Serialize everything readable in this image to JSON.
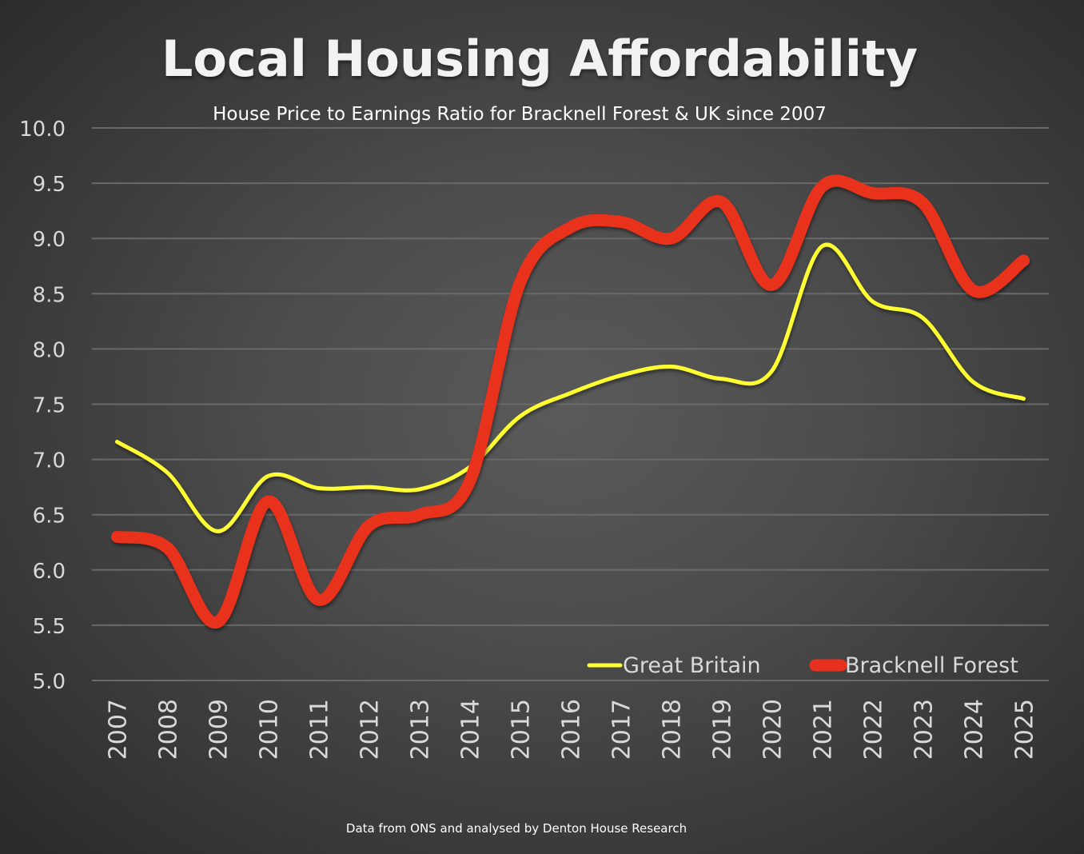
{
  "chart_data": {
    "type": "line",
    "title": "Local Housing Affordability",
    "subtitle": "House Price to Earnings Ratio for Bracknell Forest & UK since 2007",
    "footer": "Data from ONS and analysed by Denton House Research",
    "xlabel": "",
    "ylabel": "",
    "ylim": [
      5.0,
      10.0
    ],
    "yticks": [
      "5.0",
      "5.5",
      "6.0",
      "6.5",
      "7.0",
      "7.5",
      "8.0",
      "8.5",
      "9.0",
      "9.5",
      "10.0"
    ],
    "ytick_values": [
      5.0,
      5.5,
      6.0,
      6.5,
      7.0,
      7.5,
      8.0,
      8.5,
      9.0,
      9.5,
      10.0
    ],
    "grid": true,
    "legend_position": "bottom-right",
    "categories": [
      "2007",
      "2008",
      "2009",
      "2010",
      "2011",
      "2012",
      "2013",
      "2014",
      "2015",
      "2016",
      "2017",
      "2018",
      "2019",
      "2020",
      "2021",
      "2022",
      "2023",
      "2024",
      "2025"
    ],
    "series": [
      {
        "name": "Great Britain",
        "color": "#ffff33",
        "smooth": true,
        "values": [
          7.16,
          6.88,
          6.35,
          6.85,
          6.74,
          6.75,
          6.73,
          6.93,
          7.39,
          7.6,
          7.76,
          7.84,
          7.73,
          7.8,
          8.93,
          8.43,
          8.28,
          7.7,
          7.55
        ]
      },
      {
        "name": "Bracknell Forest",
        "color": "#e8301e",
        "smooth": true,
        "values": [
          6.3,
          6.2,
          5.53,
          6.62,
          5.73,
          6.4,
          6.5,
          6.8,
          8.6,
          9.1,
          9.15,
          9.0,
          9.33,
          8.58,
          9.47,
          9.41,
          9.32,
          8.53,
          8.8
        ]
      }
    ]
  }
}
